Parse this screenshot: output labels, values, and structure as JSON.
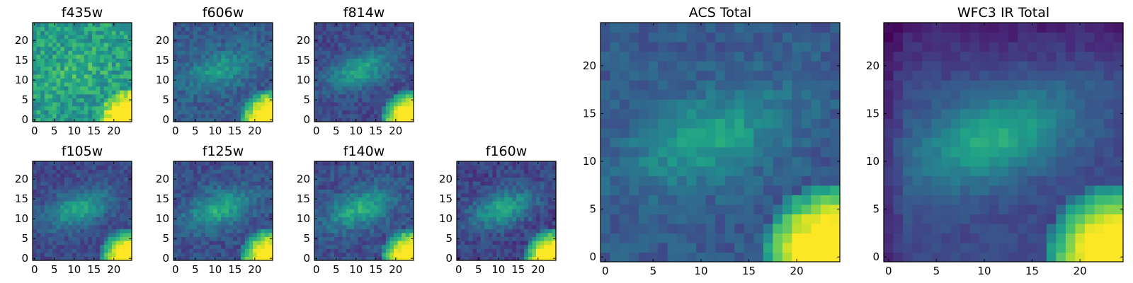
{
  "chart_data": [
    {
      "type": "heatmap",
      "title": "f435w",
      "colormap": "viridis",
      "grid_size": 25,
      "xticks": [
        0,
        5,
        10,
        15,
        20
      ],
      "yticks": [
        0,
        5,
        10,
        15,
        20
      ],
      "xlim": [
        0,
        24
      ],
      "ylim": [
        0,
        24
      ]
    },
    {
      "type": "heatmap",
      "title": "f606w",
      "colormap": "viridis",
      "grid_size": 25,
      "xticks": [
        0,
        5,
        10,
        15,
        20
      ],
      "yticks": [
        0,
        5,
        10,
        15,
        20
      ],
      "xlim": [
        0,
        24
      ],
      "ylim": [
        0,
        24
      ]
    },
    {
      "type": "heatmap",
      "title": "f814w",
      "colormap": "viridis",
      "grid_size": 25,
      "xticks": [
        0,
        5,
        10,
        15,
        20
      ],
      "yticks": [
        0,
        5,
        10,
        15,
        20
      ],
      "xlim": [
        0,
        24
      ],
      "ylim": [
        0,
        24
      ]
    },
    {
      "type": "heatmap",
      "title": "f105w",
      "colormap": "viridis",
      "grid_size": 25,
      "xticks": [
        0,
        5,
        10,
        15,
        20
      ],
      "yticks": [
        0,
        5,
        10,
        15,
        20
      ],
      "xlim": [
        0,
        24
      ],
      "ylim": [
        0,
        24
      ]
    },
    {
      "type": "heatmap",
      "title": "f125w",
      "colormap": "viridis",
      "grid_size": 25,
      "xticks": [
        0,
        5,
        10,
        15,
        20
      ],
      "yticks": [
        0,
        5,
        10,
        15,
        20
      ],
      "xlim": [
        0,
        24
      ],
      "ylim": [
        0,
        24
      ]
    },
    {
      "type": "heatmap",
      "title": "f140w",
      "colormap": "viridis",
      "grid_size": 25,
      "xticks": [
        0,
        5,
        10,
        15,
        20
      ],
      "yticks": [
        0,
        5,
        10,
        15,
        20
      ],
      "xlim": [
        0,
        24
      ],
      "ylim": [
        0,
        24
      ]
    },
    {
      "type": "heatmap",
      "title": "f160w",
      "colormap": "viridis",
      "grid_size": 25,
      "xticks": [
        0,
        5,
        10,
        15,
        20
      ],
      "yticks": [
        0,
        5,
        10,
        15,
        20
      ],
      "xlim": [
        0,
        24
      ],
      "ylim": [
        0,
        24
      ]
    },
    {
      "type": "heatmap",
      "title": "ACS Total",
      "colormap": "viridis",
      "grid_size": 25,
      "xticks": [
        0,
        5,
        10,
        15,
        20
      ],
      "yticks": [
        0,
        5,
        10,
        15,
        20
      ],
      "xlim": [
        0,
        24
      ],
      "ylim": [
        0,
        24
      ]
    },
    {
      "type": "heatmap",
      "title": "WFC3 IR Total",
      "colormap": "viridis",
      "grid_size": 25,
      "xticks": [
        0,
        5,
        10,
        15,
        20
      ],
      "yticks": [
        0,
        5,
        10,
        15,
        20
      ],
      "xlim": [
        0,
        24
      ],
      "ylim": [
        0,
        24
      ]
    }
  ]
}
